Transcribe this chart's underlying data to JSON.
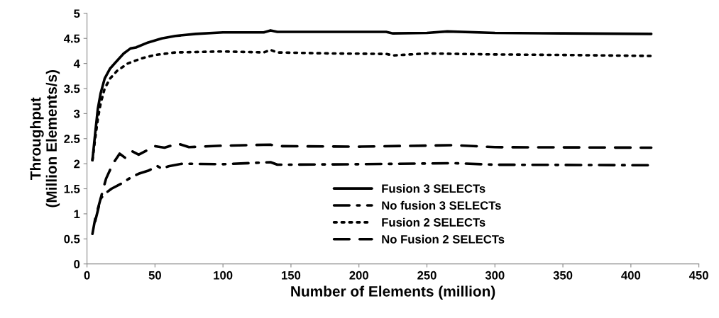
{
  "chart_data": {
    "type": "line",
    "xlabel": "Number of Elements (million)",
    "ylabel": "Throughput\n(Million Elements/s)",
    "xlim": [
      0,
      450
    ],
    "xticks": [
      0,
      50,
      100,
      150,
      200,
      250,
      300,
      350,
      400,
      450
    ],
    "ylim": [
      0,
      5
    ],
    "yticks": [
      0,
      0.5,
      1,
      1.5,
      2,
      2.5,
      3,
      3.5,
      4,
      4.5,
      5
    ],
    "grid": false,
    "legend": "lower right",
    "marker": "none",
    "series": [
      {
        "name": "Fusion 3 SELECTs",
        "color": "#000000",
        "line_style": "solid",
        "x": [
          4,
          6,
          8,
          10,
          13,
          17,
          22,
          27,
          32,
          36,
          45,
          55,
          65,
          80,
          100,
          130,
          135,
          140,
          180,
          220,
          225,
          250,
          265,
          300,
          350,
          415
        ],
        "values": [
          2.07,
          2.6,
          3.1,
          3.4,
          3.7,
          3.9,
          4.05,
          4.2,
          4.3,
          4.32,
          4.42,
          4.5,
          4.55,
          4.59,
          4.62,
          4.62,
          4.66,
          4.63,
          4.63,
          4.63,
          4.6,
          4.61,
          4.64,
          4.61,
          4.6,
          4.59
        ]
      },
      {
        "name": "No fusion 3 SELECTs",
        "color": "#000000",
        "line_style": "dashdot",
        "x": [
          6,
          8,
          10,
          13,
          18,
          25,
          32,
          38,
          45,
          52,
          55,
          60,
          70,
          100,
          135,
          140,
          200,
          270,
          300,
          415
        ],
        "values": [
          0.85,
          1.07,
          1.3,
          1.4,
          1.5,
          1.6,
          1.72,
          1.8,
          1.86,
          1.95,
          1.9,
          1.95,
          2.0,
          1.99,
          2.03,
          1.98,
          1.99,
          2.01,
          1.98,
          1.97
        ]
      },
      {
        "name": "Fusion 2 SELECTs",
        "color": "#000000",
        "line_style": "dotted",
        "x": [
          4,
          6,
          8,
          10,
          13,
          17,
          22,
          30,
          40,
          50,
          65,
          100,
          130,
          135,
          140,
          180,
          220,
          225,
          250,
          300,
          350,
          415
        ],
        "values": [
          2.07,
          2.5,
          2.9,
          3.2,
          3.5,
          3.7,
          3.85,
          4.0,
          4.1,
          4.17,
          4.22,
          4.24,
          4.22,
          4.27,
          4.22,
          4.2,
          4.19,
          4.16,
          4.2,
          4.18,
          4.17,
          4.15
        ]
      },
      {
        "name": "No Fusion 2 SELECTs",
        "color": "#000000",
        "line_style": "dashed",
        "x": [
          4,
          6,
          8,
          11,
          14,
          19,
          24,
          28,
          33,
          38,
          43,
          50,
          57,
          67,
          75,
          100,
          135,
          140,
          200,
          270,
          300,
          415
        ],
        "values": [
          0.6,
          0.9,
          1.1,
          1.4,
          1.7,
          2.0,
          2.2,
          2.12,
          2.25,
          2.18,
          2.25,
          2.35,
          2.32,
          2.4,
          2.33,
          2.36,
          2.38,
          2.35,
          2.34,
          2.37,
          2.33,
          2.32
        ]
      }
    ]
  }
}
